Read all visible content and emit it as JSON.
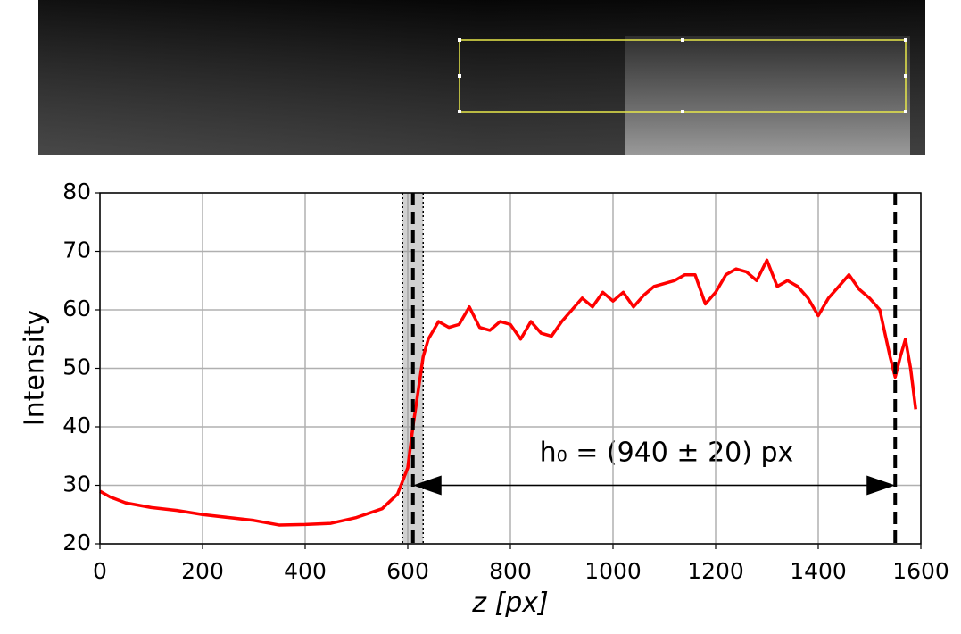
{
  "chart_data": {
    "type": "line",
    "x": [
      0,
      20,
      50,
      100,
      150,
      200,
      250,
      300,
      350,
      400,
      450,
      500,
      550,
      580,
      600,
      610,
      620,
      630,
      640,
      660,
      680,
      700,
      720,
      740,
      760,
      780,
      800,
      820,
      840,
      860,
      880,
      900,
      920,
      940,
      960,
      980,
      1000,
      1020,
      1040,
      1060,
      1080,
      1100,
      1120,
      1140,
      1160,
      1180,
      1200,
      1220,
      1240,
      1260,
      1280,
      1300,
      1320,
      1340,
      1360,
      1380,
      1400,
      1420,
      1440,
      1460,
      1480,
      1500,
      1520,
      1540,
      1550,
      1560,
      1570,
      1580,
      1590
    ],
    "series": [
      {
        "color": "#ff0000",
        "values": [
          29,
          28,
          27,
          26.2,
          25.7,
          25,
          24.5,
          24,
          23.2,
          23.3,
          23.5,
          24.5,
          26,
          28.5,
          33,
          40,
          46,
          52,
          55,
          58,
          57,
          57.5,
          60.5,
          57,
          56.5,
          58,
          57.5,
          55,
          58,
          56,
          55.5,
          58,
          60,
          62,
          60.5,
          63,
          61.5,
          63,
          60.5,
          62.5,
          64,
          64.5,
          65,
          66,
          66,
          61,
          63,
          66,
          67,
          66.5,
          65,
          68.5,
          64,
          65,
          64,
          62,
          59,
          62,
          64,
          66,
          63.5,
          62,
          60,
          52,
          48.5,
          52,
          55,
          50,
          43
        ]
      }
    ],
    "xlim": [
      0,
      1600
    ],
    "ylim": [
      20,
      80
    ],
    "xticks": [
      0,
      200,
      400,
      600,
      800,
      1000,
      1200,
      1400,
      1600
    ],
    "yticks": [
      20,
      30,
      40,
      50,
      60,
      70,
      80
    ],
    "grid": true,
    "xlabel": "z [px]",
    "ylabel": "Intensity",
    "vlines": [
      610,
      1550
    ],
    "band": [
      590,
      630
    ],
    "arrow_y": 30,
    "annotation": "h₀ = (940 ± 20) px"
  }
}
